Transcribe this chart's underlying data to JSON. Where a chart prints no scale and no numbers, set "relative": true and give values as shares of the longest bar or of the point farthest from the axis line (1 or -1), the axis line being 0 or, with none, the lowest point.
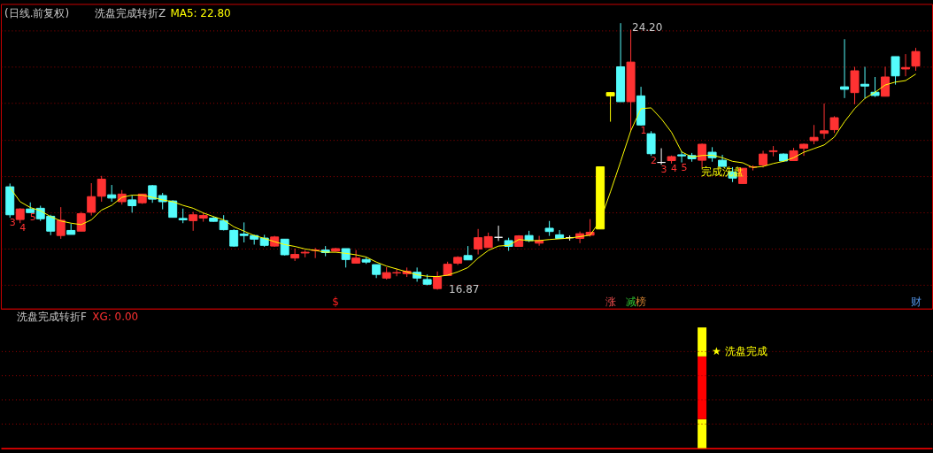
{
  "chart_data": [
    {
      "type": "candlestick",
      "title": "(日线.前复权)",
      "subtitle": "洗盘完成转折Z",
      "categories": [
        null,
        null,
        null,
        null,
        null,
        null,
        null,
        null,
        null,
        null,
        null,
        null,
        null,
        null,
        null,
        null,
        null,
        null,
        null,
        null,
        null,
        null,
        null,
        null,
        null,
        null,
        null,
        null,
        null,
        null,
        null,
        null,
        null,
        null,
        null,
        null,
        null,
        null,
        null,
        null,
        null,
        null,
        null,
        null,
        null,
        null,
        null,
        null,
        null,
        null,
        null,
        null,
        null,
        null,
        null,
        null,
        null,
        null,
        null,
        null,
        null,
        null,
        null,
        null,
        null,
        null,
        null,
        null,
        null,
        null,
        null,
        null,
        null,
        null,
        null,
        null,
        null,
        null,
        null,
        null,
        null,
        null,
        null,
        null,
        null,
        null,
        null,
        null,
        null,
        null
      ],
      "ohlc": [
        [
          19.7,
          19.79,
          18.85,
          18.93
        ],
        [
          18.8,
          19.11,
          18.7,
          19.09
        ],
        [
          19.09,
          19.27,
          18.99,
          18.99
        ],
        [
          19.11,
          19.18,
          18.76,
          18.82
        ],
        [
          18.89,
          18.93,
          18.37,
          18.48
        ],
        [
          18.36,
          19.14,
          18.27,
          18.78
        ],
        [
          18.5,
          18.68,
          18.39,
          18.39
        ],
        [
          18.48,
          19.01,
          18.48,
          18.96
        ],
        [
          19.0,
          19.8,
          18.91,
          19.43
        ],
        [
          19.44,
          20.0,
          19.29,
          19.91
        ],
        [
          19.48,
          19.75,
          19.29,
          19.39
        ],
        [
          19.29,
          19.61,
          19.21,
          19.5
        ],
        [
          19.34,
          19.46,
          18.99,
          19.18
        ],
        [
          19.26,
          19.5,
          19.23,
          19.5
        ],
        [
          19.73,
          19.75,
          19.26,
          19.36
        ],
        [
          19.46,
          19.53,
          19.08,
          19.29
        ],
        [
          19.31,
          19.33,
          18.86,
          18.86
        ],
        [
          18.83,
          19.1,
          18.7,
          18.79
        ],
        [
          18.77,
          19.01,
          18.49,
          18.93
        ],
        [
          18.84,
          19.0,
          18.74,
          18.91
        ],
        [
          18.84,
          18.89,
          18.74,
          18.75
        ],
        [
          18.77,
          18.92,
          18.5,
          18.52
        ],
        [
          18.5,
          18.53,
          18.05,
          18.07
        ],
        [
          18.4,
          18.72,
          18.17,
          18.36
        ],
        [
          18.36,
          18.38,
          18.11,
          18.26
        ],
        [
          18.29,
          18.38,
          18.05,
          18.09
        ],
        [
          18.07,
          18.35,
          18.05,
          18.32
        ],
        [
          18.26,
          18.26,
          17.81,
          17.83
        ],
        [
          17.74,
          18.0,
          17.66,
          17.84
        ],
        [
          17.88,
          17.96,
          17.76,
          17.9
        ],
        [
          17.95,
          18.02,
          17.74,
          17.96
        ],
        [
          17.96,
          18.07,
          17.79,
          17.89
        ],
        [
          17.93,
          18.02,
          17.92,
          18.0
        ],
        [
          18.0,
          18.0,
          17.48,
          17.7
        ],
        [
          17.6,
          17.96,
          17.6,
          17.74
        ],
        [
          17.7,
          17.76,
          17.58,
          17.63
        ],
        [
          17.56,
          17.56,
          17.19,
          17.29
        ],
        [
          17.19,
          17.49,
          17.15,
          17.34
        ],
        [
          17.33,
          17.45,
          17.24,
          17.34
        ],
        [
          17.31,
          17.48,
          17.22,
          17.38
        ],
        [
          17.35,
          17.48,
          17.09,
          17.19
        ],
        [
          17.15,
          17.29,
          16.99,
          17.02
        ],
        [
          16.9,
          17.37,
          16.87,
          17.23
        ],
        [
          17.26,
          17.64,
          17.26,
          17.57
        ],
        [
          17.6,
          17.79,
          17.55,
          17.76
        ],
        [
          17.81,
          18.07,
          17.69,
          17.69
        ],
        [
          17.99,
          18.54,
          17.84,
          18.3
        ],
        [
          18.03,
          18.44,
          18.03,
          18.33
        ],
        [
          18.31,
          18.63,
          18.21,
          18.31
        ],
        [
          18.22,
          18.3,
          17.94,
          18.06
        ],
        [
          18.06,
          18.37,
          18.06,
          18.35
        ],
        [
          18.36,
          18.49,
          18.18,
          18.22
        ],
        [
          18.15,
          18.35,
          18.08,
          18.22
        ],
        [
          18.56,
          18.76,
          18.35,
          18.47
        ],
        [
          18.38,
          18.51,
          18.28,
          18.28
        ],
        [
          18.3,
          18.36,
          18.22,
          18.3
        ],
        [
          18.28,
          18.47,
          18.15,
          18.41
        ],
        [
          18.37,
          18.81,
          18.33,
          18.45
        ],
        [
          18.54,
          20.25,
          18.54,
          20.25
        ],
        [
          22.2,
          22.3,
          21.49,
          22.29
        ],
        [
          23.0,
          24.2,
          22.04,
          22.04
        ],
        [
          22.04,
          24.02,
          21.24,
          23.13
        ],
        [
          22.2,
          22.45,
          21.38,
          21.4
        ],
        [
          21.16,
          21.23,
          20.55,
          20.61
        ],
        [
          20.37,
          20.76,
          20.31,
          20.37
        ],
        [
          20.42,
          20.56,
          20.34,
          20.53
        ],
        [
          20.58,
          20.68,
          20.37,
          20.55
        ],
        [
          20.56,
          20.63,
          20.39,
          20.47
        ],
        [
          20.43,
          20.89,
          20.23,
          20.87
        ],
        [
          20.65,
          20.79,
          20.39,
          20.5
        ],
        [
          20.43,
          20.58,
          20.26,
          20.26
        ],
        [
          20.11,
          20.24,
          19.83,
          19.94
        ],
        [
          19.79,
          20.21,
          19.79,
          20.21
        ],
        [
          20.24,
          20.29,
          20.15,
          20.25
        ],
        [
          20.3,
          20.69,
          20.23,
          20.6
        ],
        [
          20.67,
          20.82,
          20.54,
          20.69
        ],
        [
          20.6,
          20.62,
          20.39,
          20.41
        ],
        [
          20.42,
          20.77,
          20.42,
          20.69
        ],
        [
          20.76,
          20.89,
          20.55,
          20.87
        ],
        [
          20.97,
          21.4,
          20.87,
          21.06
        ],
        [
          21.17,
          21.99,
          21.02,
          21.24
        ],
        [
          21.27,
          21.64,
          21.18,
          21.6
        ],
        [
          22.45,
          23.76,
          22.14,
          22.38
        ],
        [
          22.29,
          23.0,
          21.97,
          22.89
        ],
        [
          22.52,
          23.0,
          22.13,
          22.47
        ],
        [
          22.3,
          22.72,
          22.17,
          22.21
        ],
        [
          22.19,
          23.0,
          22.19,
          22.72
        ],
        [
          23.28,
          23.28,
          22.51,
          22.75
        ],
        [
          22.94,
          23.35,
          22.74,
          22.98
        ],
        [
          23.02,
          23.52,
          22.89,
          23.42
        ]
      ],
      "colors": [
        "#54fcfc",
        "#ff3232",
        "#54fcfc",
        "#54fcfc",
        "#54fcfc",
        "#ff3232",
        "#54fcfc",
        "#ff3232",
        "#ff3232",
        "#ff3232",
        "#54fcfc",
        "#ff3232",
        "#54fcfc",
        "#ff3232",
        "#54fcfc",
        "#54fcfc",
        "#54fcfc",
        "#54fcfc",
        "#ff3232",
        "#ff3232",
        "#54fcfc",
        "#54fcfc",
        "#54fcfc",
        "#54fcfc",
        "#54fcfc",
        "#54fcfc",
        "#ff3232",
        "#54fcfc",
        "#ff3232",
        "#ff3232",
        "#ff3232",
        "#54fcfc",
        "#ff3232",
        "#54fcfc",
        "#ff3232",
        "#54fcfc",
        "#54fcfc",
        "#ff3232",
        "#ff3232",
        "#ff3232",
        "#54fcfc",
        "#54fcfc",
        "#ff3232",
        "#ff3232",
        "#ff3232",
        "#54fcfc",
        "#ff3232",
        "#ff3232",
        "#ffffff",
        "#54fcfc",
        "#ff3232",
        "#54fcfc",
        "#ff3232",
        "#54fcfc",
        "#54fcfc",
        "#ffffff",
        "#ff3232",
        "#ff3232",
        "#ffff00",
        "#ffff00",
        "#54fcfc",
        "#ff3232",
        "#54fcfc",
        "#54fcfc",
        "#ffffff",
        "#ff3232",
        "#54fcfc",
        "#54fcfc",
        "#ff3232",
        "#54fcfc",
        "#54fcfc",
        "#54fcfc",
        "#ff3232",
        "#ff3232",
        "#ff3232",
        "#ff3232",
        "#54fcfc",
        "#ff3232",
        "#ff3232",
        "#ff3232",
        "#ff3232",
        "#ff3232",
        "#54fcfc",
        "#ff3232",
        "#54fcfc",
        "#54fcfc",
        "#ff3232",
        "#54fcfc",
        "#ff3232",
        "#ff3232"
      ],
      "series": [
        {
          "type": "line",
          "name": "MA5: 22.80",
          "color": "#ffff00",
          "line_style": "solid",
          "values": [
            19.68,
            19.29,
            19.13,
            19.04,
            18.88,
            18.76,
            18.7,
            18.66,
            18.79,
            19.06,
            19.19,
            19.41,
            19.47,
            19.47,
            19.41,
            19.34,
            19.29,
            19.19,
            19.11,
            18.98,
            18.88,
            18.79,
            18.6,
            18.48,
            18.36,
            18.28,
            18.19,
            18.11,
            18.06,
            17.99,
            17.95,
            17.9,
            17.9,
            17.87,
            17.83,
            17.77,
            17.63,
            17.52,
            17.44,
            17.36,
            17.28,
            17.24,
            17.23,
            17.27,
            17.36,
            17.48,
            17.74,
            17.95,
            18.07,
            18.09,
            18.25,
            18.22,
            18.22,
            18.25,
            18.27,
            18.29,
            18.33,
            18.37,
            18.77,
            19.56,
            20.39,
            21.24,
            21.85,
            21.87,
            21.57,
            21.2,
            20.66,
            20.52,
            20.56,
            20.57,
            20.5,
            20.4,
            20.36,
            20.23,
            20.26,
            20.34,
            20.4,
            20.5,
            20.65,
            20.75,
            20.85,
            21.07,
            21.49,
            21.85,
            22.13,
            22.3,
            22.5,
            22.58,
            22.62,
            22.8
          ]
        }
      ],
      "yticks": [
        {
          "value": 17,
          "label": null
        },
        {
          "value": 18,
          "label": null
        },
        {
          "value": 19,
          "label": null
        },
        {
          "value": 20,
          "label": null
        },
        {
          "value": 21,
          "label": null
        },
        {
          "value": 22,
          "label": null
        },
        {
          "value": 23,
          "label": null
        },
        {
          "value": 24,
          "label": null
        }
      ],
      "grid": "y",
      "tick_labels": false,
      "annotations": [
        "24.20",
        "16.87",
        "3",
        "4",
        "5",
        "1",
        "2",
        "3",
        "4",
        "5",
        "完成洗盘",
        "$",
        "涨",
        "减",
        "榜",
        "财"
      ]
    },
    {
      "type": "bar",
      "title": "洗盘完成转折F",
      "categories": [
        null,
        null,
        null,
        null,
        null,
        null,
        null,
        null,
        null,
        null,
        null,
        null,
        null,
        null,
        null,
        null,
        null,
        null,
        null,
        null,
        null,
        null,
        null,
        null,
        null,
        null,
        null,
        null,
        null,
        null,
        null,
        null,
        null,
        null,
        null,
        null,
        null,
        null,
        null,
        null,
        null,
        null,
        null,
        null,
        null,
        null,
        null,
        null,
        null,
        null,
        null,
        null,
        null,
        null,
        null,
        null,
        null,
        null,
        null,
        null,
        null,
        null,
        null,
        null,
        null,
        null,
        null,
        null,
        null,
        null,
        null,
        null,
        null,
        null,
        null,
        null,
        null,
        null,
        null,
        null,
        null,
        null,
        null,
        null,
        null,
        null,
        null,
        null,
        null,
        null
      ],
      "stacked": true,
      "relative": true,
      "series": [
        {
          "color": "#ffff00",
          "values": [
            null,
            null,
            null,
            null,
            null,
            null,
            null,
            null,
            null,
            null,
            null,
            null,
            null,
            null,
            null,
            null,
            null,
            null,
            null,
            null,
            null,
            null,
            null,
            null,
            null,
            null,
            null,
            null,
            null,
            null,
            null,
            null,
            null,
            null,
            null,
            null,
            null,
            null,
            null,
            null,
            null,
            null,
            null,
            null,
            null,
            null,
            null,
            null,
            null,
            null,
            null,
            null,
            null,
            null,
            null,
            null,
            null,
            null,
            null,
            null,
            null,
            null,
            null,
            null,
            null,
            null,
            null,
            null,
            0.24,
            null,
            null,
            null,
            null,
            null,
            null,
            null,
            null,
            null,
            null,
            null,
            null,
            null,
            null,
            null,
            null,
            null,
            null,
            null,
            null,
            null
          ]
        },
        {
          "color": "#ff0000",
          "values": [
            null,
            null,
            null,
            null,
            null,
            null,
            null,
            null,
            null,
            null,
            null,
            null,
            null,
            null,
            null,
            null,
            null,
            null,
            null,
            null,
            null,
            null,
            null,
            null,
            null,
            null,
            null,
            null,
            null,
            null,
            null,
            null,
            null,
            null,
            null,
            null,
            null,
            null,
            null,
            null,
            null,
            null,
            null,
            null,
            null,
            null,
            null,
            null,
            null,
            null,
            null,
            null,
            null,
            null,
            null,
            null,
            null,
            null,
            null,
            null,
            null,
            null,
            null,
            null,
            null,
            null,
            null,
            null,
            0.52,
            null,
            null,
            null,
            null,
            null,
            null,
            null,
            null,
            null,
            null,
            null,
            null,
            null,
            null,
            null,
            null,
            null,
            null,
            null,
            null,
            null
          ]
        },
        {
          "color": "#ffff00",
          "values": [
            null,
            null,
            null,
            null,
            null,
            null,
            null,
            null,
            null,
            null,
            null,
            null,
            null,
            null,
            null,
            null,
            null,
            null,
            null,
            null,
            null,
            null,
            null,
            null,
            null,
            null,
            null,
            null,
            null,
            null,
            null,
            null,
            null,
            null,
            null,
            null,
            null,
            null,
            null,
            null,
            null,
            null,
            null,
            null,
            null,
            null,
            null,
            null,
            null,
            null,
            null,
            null,
            null,
            null,
            null,
            null,
            null,
            null,
            null,
            null,
            null,
            null,
            null,
            null,
            null,
            null,
            null,
            null,
            0.24,
            null,
            null,
            null,
            null,
            null,
            null,
            null,
            null,
            null,
            null,
            null,
            null,
            null,
            null,
            null,
            null,
            null,
            null,
            null,
            null,
            null
          ]
        }
      ],
      "ref_lines": [
        {
          "axis": "y",
          "value": 0.2,
          "color": "#9b0000",
          "line_style": "dotted"
        },
        {
          "axis": "y",
          "value": 0.4,
          "color": "#9b0000",
          "line_style": "dotted"
        },
        {
          "axis": "y",
          "value": 0.6,
          "color": "#9b0000",
          "line_style": "dotted"
        },
        {
          "axis": "y",
          "value": 0.8,
          "color": "#9b0000",
          "line_style": "dotted"
        }
      ],
      "tick_labels": false,
      "annotations": [
        "XG: 0.00",
        "★ 洗盘完成"
      ]
    }
  ]
}
